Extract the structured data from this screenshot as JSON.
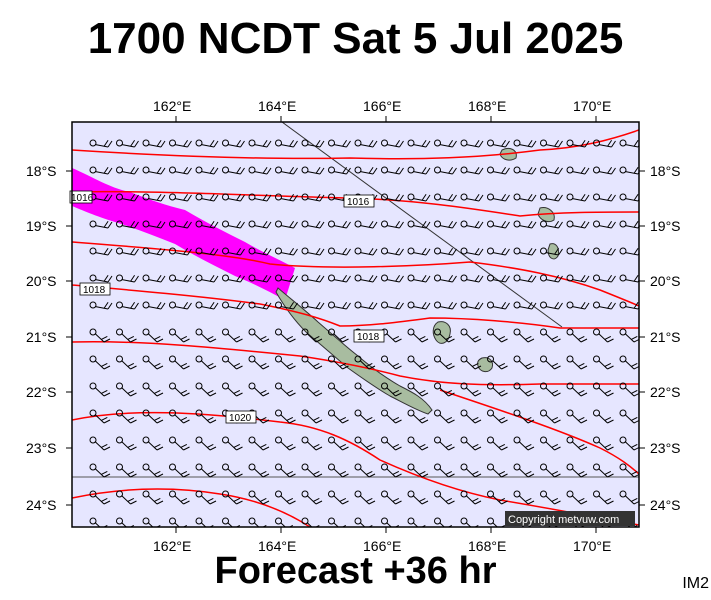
{
  "title": "1700 NCDT Sat 5 Jul 2025",
  "footer": "Forecast +36 hr",
  "code": "IM2",
  "copyright": "Copyright metvuw.com",
  "map": {
    "lon_labels": [
      "162°E",
      "164°E",
      "166°E",
      "168°E",
      "170°E"
    ],
    "lat_labels": [
      "18°S",
      "19°S",
      "20°S",
      "21°S",
      "22°S",
      "23°S",
      "24°S"
    ],
    "isobar_labels": [
      "1016",
      "1016",
      "1018",
      "1018",
      "1020"
    ],
    "colors": {
      "sea": "#e6e6ff",
      "land": "#a8bca0",
      "isobar": "#ff0000",
      "rain": "#ff00ff",
      "wind": "#000000"
    }
  }
}
